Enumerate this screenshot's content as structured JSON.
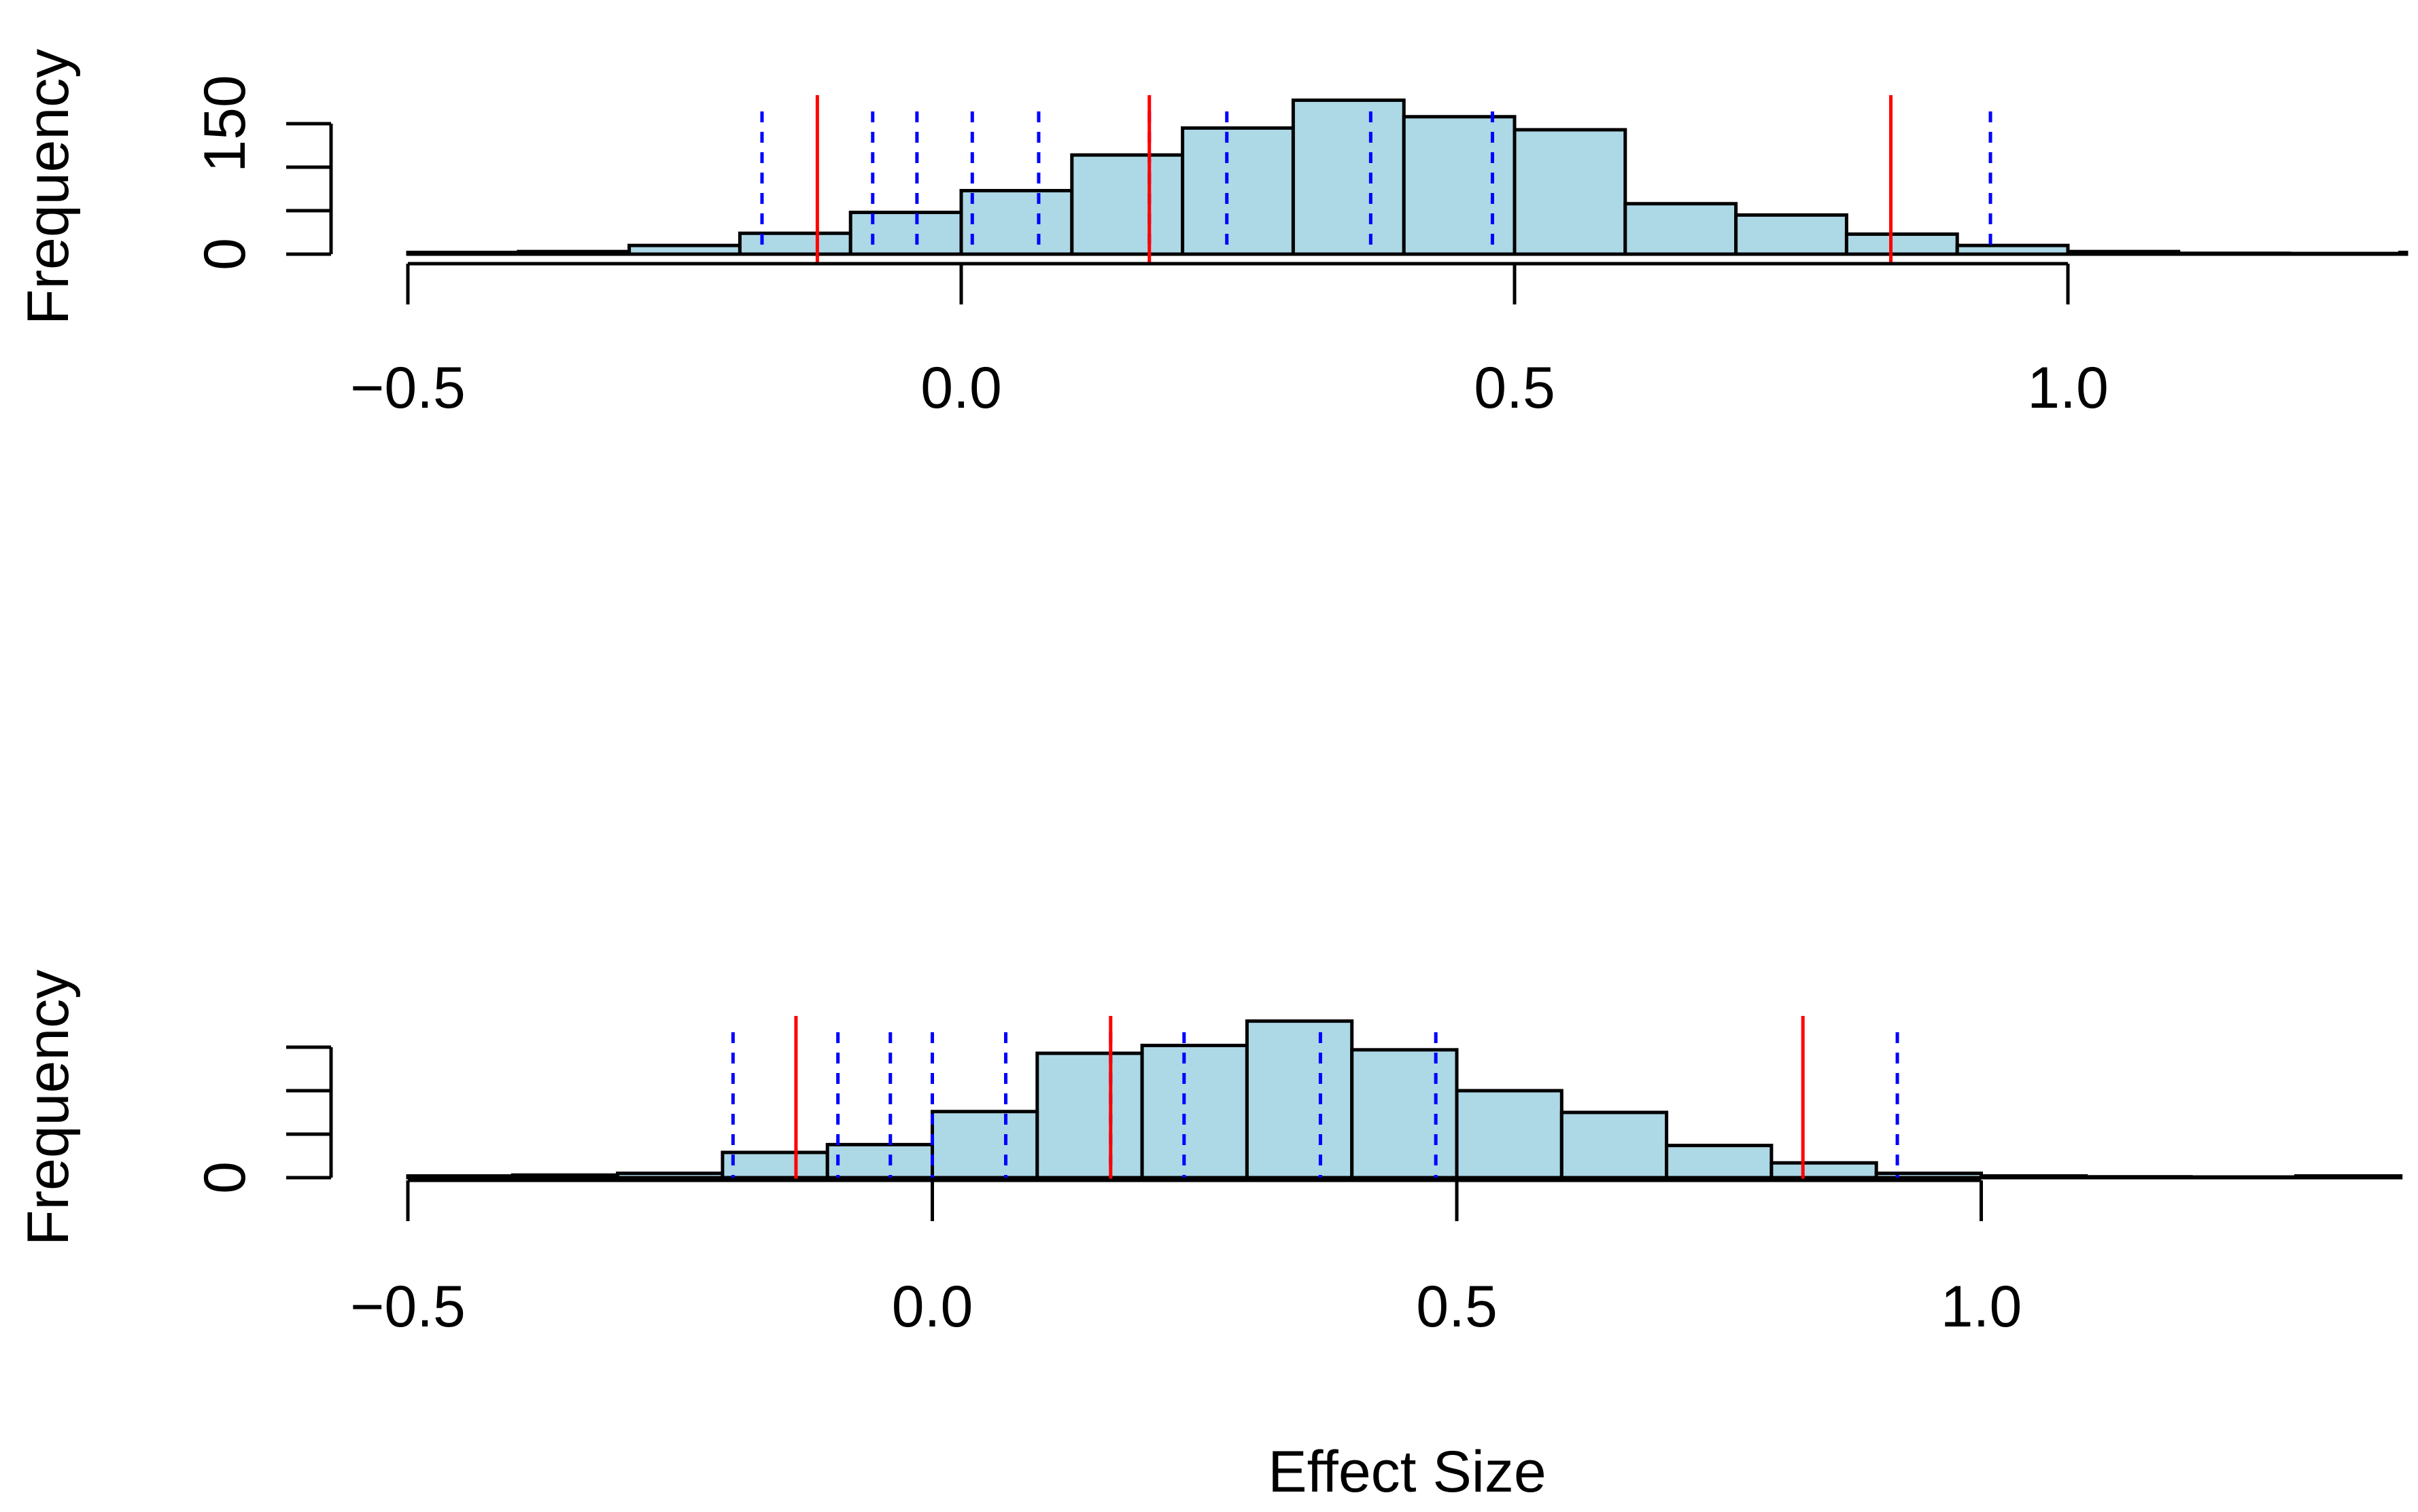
{
  "chart_data": [
    {
      "type": "bar",
      "title": "",
      "xlabel": "",
      "ylabel": "Frequency",
      "xlim": [
        -0.5,
        1.35
      ],
      "ylim": [
        0,
        190
      ],
      "yticks": [
        0,
        50,
        100,
        150
      ],
      "ytick_labels": [
        "0",
        "",
        "",
        "150"
      ],
      "xticks": [
        -0.5,
        0.0,
        0.5,
        1.0
      ],
      "xtick_labels": [
        "−0.5",
        "0.0",
        "0.5",
        "1.0"
      ],
      "bin_edges": [
        -0.5,
        -0.4,
        -0.3,
        -0.2,
        -0.1,
        0.0,
        0.1,
        0.2,
        0.3,
        0.4,
        0.5,
        0.6,
        0.7,
        0.8,
        0.9,
        1.0,
        1.1,
        1.2,
        1.3,
        1.4
      ],
      "counts": [
        2,
        3,
        10,
        24,
        48,
        73,
        114,
        145,
        177,
        158,
        143,
        58,
        45,
        23,
        10,
        3,
        1,
        0,
        2
      ],
      "red_lines": [
        -0.13,
        0.17,
        0.84
      ],
      "blue_dashed_lines": [
        -0.18,
        -0.08,
        -0.04,
        0.01,
        0.07,
        0.17,
        0.24,
        0.37,
        0.48,
        0.93
      ],
      "bar_color": "#add8e6",
      "red_color": "#ff0000",
      "blue_color": "#0000ff"
    },
    {
      "type": "bar",
      "title": "",
      "xlabel": "Effect Size",
      "ylabel": "Frequency",
      "xlim": [
        -0.5,
        1.4
      ],
      "ylim": [
        0,
        190
      ],
      "yticks": [
        0,
        50,
        100,
        150
      ],
      "ytick_labels": [
        "0",
        "",
        "",
        ""
      ],
      "xticks": [
        -0.5,
        0.0,
        0.5,
        1.0
      ],
      "xtick_labels": [
        "−0.5",
        "0.0",
        "0.5",
        "1.0"
      ],
      "bin_edges": [
        -0.5,
        -0.4,
        -0.3,
        -0.2,
        -0.1,
        0.0,
        0.1,
        0.2,
        0.3,
        0.4,
        0.5,
        0.6,
        0.7,
        0.8,
        0.9,
        1.0,
        1.1,
        1.2,
        1.3,
        1.4
      ],
      "counts": [
        2,
        3,
        5,
        29,
        38,
        76,
        143,
        152,
        180,
        147,
        100,
        75,
        37,
        17,
        5,
        2,
        1,
        0,
        2
      ],
      "red_lines": [
        -0.13,
        0.17,
        0.83
      ],
      "blue_dashed_lines": [
        -0.19,
        -0.09,
        -0.04,
        0.0,
        0.07,
        0.17,
        0.24,
        0.37,
        0.48,
        0.92
      ],
      "bar_color": "#add8e6",
      "red_color": "#ff0000",
      "blue_color": "#0000ff"
    }
  ]
}
